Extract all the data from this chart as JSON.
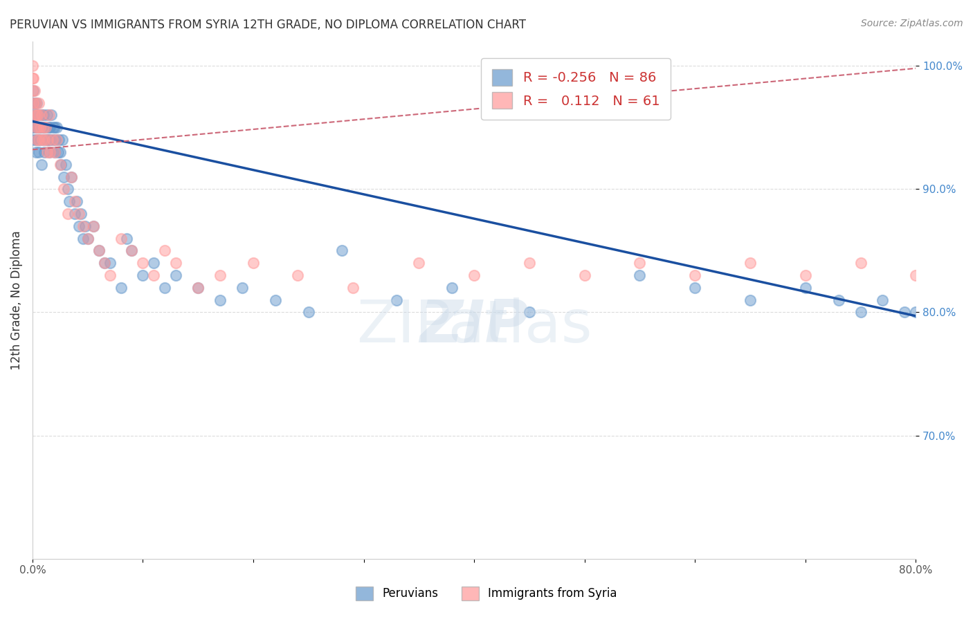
{
  "title": "PERUVIAN VS IMMIGRANTS FROM SYRIA 12TH GRADE, NO DIPLOMA CORRELATION CHART",
  "source": "Source: ZipAtlas.com",
  "xlabel_bottom": "",
  "ylabel": "12th Grade, No Diploma",
  "x_min": 0.0,
  "x_max": 0.8,
  "y_min": 0.6,
  "y_max": 1.02,
  "x_ticks": [
    0.0,
    0.1,
    0.2,
    0.3,
    0.4,
    0.5,
    0.6,
    0.7,
    0.8
  ],
  "x_tick_labels": [
    "0.0%",
    "",
    "",
    "",
    "",
    "",
    "",
    "",
    "80.0%"
  ],
  "y_ticks": [
    0.7,
    0.8,
    0.9,
    1.0
  ],
  "y_tick_labels": [
    "70.0%",
    "80.0%",
    "90.0%",
    "100.0%"
  ],
  "watermark": "ZIPatlas",
  "blue_color": "#6699CC",
  "pink_color": "#FF9999",
  "blue_line_color": "#1a4fa0",
  "pink_line_color": "#cc6677",
  "legend_blue_r": "-0.256",
  "legend_blue_n": "86",
  "legend_pink_r": "0.112",
  "legend_pink_n": "61",
  "blue_scatter_x": [
    0.0,
    0.0,
    0.001,
    0.001,
    0.001,
    0.002,
    0.002,
    0.003,
    0.003,
    0.003,
    0.004,
    0.004,
    0.005,
    0.005,
    0.006,
    0.006,
    0.007,
    0.007,
    0.008,
    0.008,
    0.009,
    0.01,
    0.01,
    0.011,
    0.011,
    0.012,
    0.013,
    0.013,
    0.014,
    0.015,
    0.015,
    0.016,
    0.016,
    0.017,
    0.018,
    0.019,
    0.02,
    0.02,
    0.021,
    0.022,
    0.023,
    0.024,
    0.025,
    0.026,
    0.027,
    0.028,
    0.03,
    0.032,
    0.033,
    0.035,
    0.038,
    0.04,
    0.042,
    0.044,
    0.046,
    0.048,
    0.05,
    0.055,
    0.06,
    0.065,
    0.07,
    0.08,
    0.085,
    0.09,
    0.1,
    0.11,
    0.12,
    0.13,
    0.15,
    0.17,
    0.19,
    0.22,
    0.25,
    0.28,
    0.33,
    0.38,
    0.45,
    0.55,
    0.6,
    0.65,
    0.7,
    0.73,
    0.75,
    0.77,
    0.79,
    0.8
  ],
  "blue_scatter_y": [
    0.95,
    0.97,
    0.96,
    0.98,
    0.94,
    0.97,
    0.95,
    0.96,
    0.94,
    0.93,
    0.95,
    0.97,
    0.94,
    0.96,
    0.95,
    0.93,
    0.95,
    0.94,
    0.96,
    0.92,
    0.95,
    0.94,
    0.96,
    0.95,
    0.93,
    0.95,
    0.94,
    0.96,
    0.94,
    0.95,
    0.93,
    0.95,
    0.94,
    0.96,
    0.94,
    0.95,
    0.93,
    0.95,
    0.94,
    0.95,
    0.93,
    0.94,
    0.93,
    0.92,
    0.94,
    0.91,
    0.92,
    0.9,
    0.89,
    0.91,
    0.88,
    0.89,
    0.87,
    0.88,
    0.86,
    0.87,
    0.86,
    0.87,
    0.85,
    0.84,
    0.84,
    0.82,
    0.86,
    0.85,
    0.83,
    0.84,
    0.82,
    0.83,
    0.82,
    0.81,
    0.82,
    0.81,
    0.8,
    0.85,
    0.81,
    0.82,
    0.8,
    0.83,
    0.82,
    0.81,
    0.82,
    0.81,
    0.8,
    0.81,
    0.8,
    0.8
  ],
  "pink_scatter_x": [
    0.0,
    0.0,
    0.0,
    0.001,
    0.001,
    0.002,
    0.002,
    0.003,
    0.003,
    0.004,
    0.004,
    0.005,
    0.005,
    0.006,
    0.006,
    0.007,
    0.008,
    0.009,
    0.01,
    0.011,
    0.012,
    0.013,
    0.014,
    0.015,
    0.016,
    0.018,
    0.02,
    0.022,
    0.025,
    0.028,
    0.032,
    0.035,
    0.038,
    0.042,
    0.046,
    0.05,
    0.055,
    0.06,
    0.065,
    0.07,
    0.08,
    0.09,
    0.1,
    0.11,
    0.12,
    0.13,
    0.15,
    0.17,
    0.2,
    0.24,
    0.29,
    0.35,
    0.4,
    0.45,
    0.5,
    0.55,
    0.6,
    0.65,
    0.7,
    0.75,
    0.8
  ],
  "pink_scatter_y": [
    1.0,
    0.99,
    0.98,
    0.99,
    0.97,
    0.98,
    0.96,
    0.97,
    0.95,
    0.96,
    0.94,
    0.96,
    0.95,
    0.97,
    0.94,
    0.95,
    0.96,
    0.94,
    0.95,
    0.94,
    0.95,
    0.93,
    0.94,
    0.96,
    0.93,
    0.94,
    0.93,
    0.94,
    0.92,
    0.9,
    0.88,
    0.91,
    0.89,
    0.88,
    0.87,
    0.86,
    0.87,
    0.85,
    0.84,
    0.83,
    0.86,
    0.85,
    0.84,
    0.83,
    0.85,
    0.84,
    0.82,
    0.83,
    0.84,
    0.83,
    0.82,
    0.84,
    0.83,
    0.84,
    0.83,
    0.84,
    0.83,
    0.84,
    0.83,
    0.84,
    0.83
  ],
  "blue_trend_x": [
    0.0,
    0.8
  ],
  "blue_trend_y": [
    0.955,
    0.797
  ],
  "pink_trend_x": [
    0.0,
    0.8
  ],
  "pink_trend_y": [
    0.932,
    0.998
  ],
  "background_color": "#ffffff",
  "grid_color": "#cccccc"
}
